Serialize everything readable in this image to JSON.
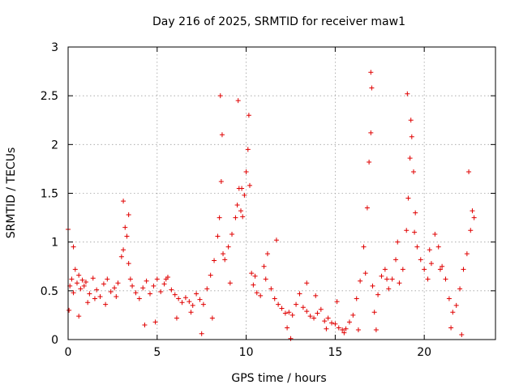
{
  "chart_data": {
    "type": "scatter",
    "title": "Day 216 of 2025, SRMTID for receiver maw1",
    "xlabel": "GPS time / hours",
    "ylabel": "SRMTID / TECUs",
    "xlim": [
      0,
      24
    ],
    "ylim": [
      0,
      3
    ],
    "xticks": [
      0,
      5,
      10,
      15,
      20
    ],
    "yticks": [
      0,
      0.5,
      1,
      1.5,
      2,
      2.5,
      3
    ],
    "xtick_labels": [
      "0",
      "5",
      "10",
      "15",
      "20"
    ],
    "ytick_labels": [
      "0",
      "0.5",
      "1",
      "1.5",
      "2",
      "2.5",
      "3"
    ],
    "grid": true,
    "marker": "+",
    "color": "#e00000",
    "series": [
      {
        "name": "SRMTID",
        "x": [
          0.0,
          0.1,
          0.2,
          0.3,
          0.4,
          0.5,
          0.6,
          0.7,
          0.8,
          0.9,
          1.0,
          1.2,
          1.4,
          1.6,
          1.8,
          2.0,
          2.2,
          2.4,
          2.6,
          2.8,
          3.0,
          3.1,
          3.2,
          3.3,
          3.4,
          3.5,
          3.6,
          3.8,
          4.0,
          4.2,
          4.4,
          4.6,
          4.8,
          5.0,
          5.2,
          5.4,
          5.6,
          5.8,
          6.0,
          6.2,
          6.4,
          6.6,
          6.8,
          7.0,
          7.2,
          7.4,
          7.6,
          7.8,
          8.0,
          8.2,
          8.4,
          8.5,
          8.6,
          8.7,
          8.8,
          9.0,
          9.2,
          9.4,
          9.5,
          9.6,
          9.7,
          9.8,
          9.9,
          10.0,
          10.1,
          10.2,
          10.3,
          10.4,
          10.6,
          10.8,
          11.0,
          11.2,
          11.4,
          11.6,
          11.8,
          12.0,
          12.2,
          12.4,
          12.6,
          12.8,
          13.0,
          13.2,
          13.4,
          13.6,
          13.8,
          14.0,
          14.2,
          14.4,
          14.6,
          14.8,
          15.0,
          15.2,
          15.4,
          15.6,
          15.8,
          16.0,
          16.2,
          16.4,
          16.6,
          16.8,
          16.9,
          17.0,
          17.1,
          17.2,
          17.4,
          17.6,
          17.8,
          18.0,
          18.2,
          18.4,
          18.6,
          18.8,
          19.0,
          19.1,
          19.2,
          19.3,
          19.4,
          19.5,
          19.6,
          19.8,
          20.0,
          20.2,
          20.4,
          20.6,
          20.8,
          21.0,
          21.2,
          21.4,
          21.6,
          21.8,
          22.0,
          22.2,
          22.4,
          22.6,
          22.8,
          0.05,
          0.3,
          0.6,
          1.1,
          1.5,
          2.1,
          2.7,
          3.1,
          3.4,
          4.3,
          4.9,
          5.5,
          6.1,
          6.9,
          7.5,
          8.1,
          8.55,
          8.65,
          9.1,
          9.55,
          9.75,
          10.15,
          10.5,
          11.1,
          11.7,
          12.3,
          12.5,
          13.4,
          13.9,
          14.5,
          15.1,
          15.5,
          16.3,
          16.7,
          17.0,
          17.05,
          17.3,
          17.9,
          18.5,
          19.05,
          19.25,
          19.45,
          20.3,
          20.9,
          21.5,
          22.1,
          22.5,
          22.7
        ],
        "y": [
          1.13,
          0.55,
          0.62,
          0.48,
          0.72,
          0.58,
          0.66,
          0.52,
          0.61,
          0.55,
          0.59,
          0.47,
          0.63,
          0.51,
          0.44,
          0.57,
          0.62,
          0.49,
          0.53,
          0.58,
          0.85,
          0.92,
          1.15,
          1.06,
          0.78,
          0.62,
          0.55,
          0.48,
          0.42,
          0.53,
          0.6,
          0.47,
          0.55,
          0.62,
          0.49,
          0.57,
          0.64,
          0.51,
          0.46,
          0.42,
          0.38,
          0.43,
          0.39,
          0.35,
          0.47,
          0.41,
          0.36,
          0.52,
          0.66,
          0.81,
          1.06,
          1.25,
          1.62,
          0.88,
          0.82,
          0.95,
          1.08,
          1.25,
          1.38,
          1.55,
          1.32,
          1.26,
          1.48,
          1.72,
          1.95,
          1.58,
          0.68,
          0.56,
          0.48,
          0.45,
          0.75,
          0.88,
          0.52,
          0.42,
          0.36,
          0.32,
          0.27,
          0.28,
          0.25,
          0.36,
          0.47,
          0.33,
          0.29,
          0.24,
          0.22,
          0.27,
          0.31,
          0.19,
          0.22,
          0.17,
          0.16,
          0.12,
          0.1,
          0.11,
          0.18,
          0.25,
          0.42,
          0.6,
          0.95,
          1.35,
          1.82,
          2.12,
          0.55,
          0.28,
          0.46,
          0.65,
          0.72,
          0.52,
          0.62,
          0.82,
          0.58,
          0.72,
          1.12,
          1.45,
          1.86,
          2.08,
          1.72,
          1.3,
          0.95,
          0.82,
          0.72,
          0.62,
          0.78,
          1.08,
          0.95,
          0.75,
          0.62,
          0.42,
          0.28,
          0.35,
          0.52,
          0.72,
          0.88,
          1.12,
          1.25,
          0.3,
          0.95,
          0.24,
          0.38,
          0.42,
          0.36,
          0.44,
          1.42,
          1.28,
          0.15,
          0.18,
          0.62,
          0.22,
          0.28,
          0.06,
          0.22,
          2.5,
          2.1,
          0.58,
          2.45,
          1.55,
          2.3,
          0.65,
          0.62,
          1.02,
          0.12,
          0.01,
          0.58,
          0.45,
          0.11,
          0.39,
          0.07,
          0.1,
          0.68,
          2.74,
          2.58,
          0.1,
          0.62,
          1.0,
          2.52,
          2.25,
          1.1,
          0.92,
          0.72,
          0.12,
          0.05,
          1.72,
          1.32
        ]
      }
    ]
  }
}
